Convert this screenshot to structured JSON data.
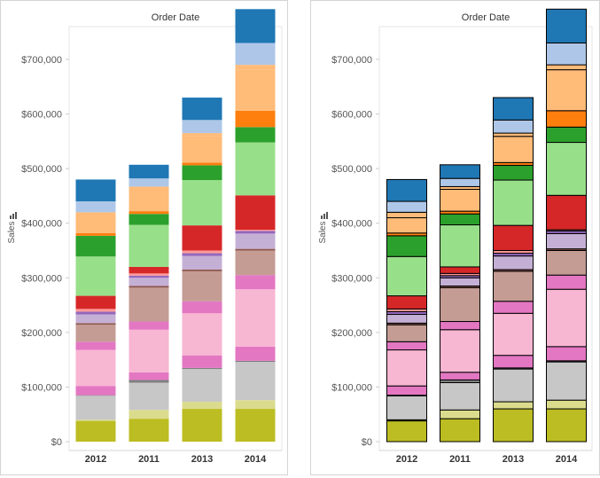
{
  "chart_data": [
    {
      "type": "bar",
      "stacked": true,
      "header": "Order Date",
      "ylabel": "Sales",
      "categories": [
        "2012",
        "2011",
        "2013",
        "2014"
      ],
      "ylim": [
        0,
        760000
      ],
      "yticks": [
        "$0",
        "$100,000",
        "$200,000",
        "$300,000",
        "$400,000",
        "$500,000",
        "$600,000",
        "$700,000"
      ],
      "segment_outline": false,
      "segments": [
        [
          38000,
          2000,
          44000,
          1000,
          17000,
          66000,
          15000,
          31000,
          3000,
          16000,
          5000,
          5000,
          24000,
          72000,
          38000,
          5000,
          28000,
          10000,
          20000,
          40000
        ],
        [
          42000,
          16000,
          50000,
          5000,
          14000,
          78000,
          15000,
          62000,
          3000,
          15000,
          4000,
          4000,
          12000,
          77000,
          20000,
          5000,
          40000,
          5000,
          15000,
          25000
        ],
        [
          60000,
          13000,
          60000,
          2000,
          23000,
          77000,
          22000,
          55000,
          3000,
          25000,
          5000,
          5000,
          46000,
          83000,
          27000,
          5000,
          48000,
          6000,
          24000,
          41000
        ],
        [
          60000,
          16000,
          70000,
          2000,
          26000,
          105000,
          26000,
          45000,
          3000,
          28000,
          5000,
          2000,
          63000,
          97000,
          28000,
          30000,
          75000,
          9000,
          40000,
          62000
        ]
      ]
    },
    {
      "type": "bar",
      "stacked": true,
      "header": "Order Date",
      "ylabel": "Sales",
      "categories": [
        "2012",
        "2011",
        "2013",
        "2014"
      ],
      "ylim": [
        0,
        760000
      ],
      "yticks": [
        "$0",
        "$100,000",
        "$200,000",
        "$300,000",
        "$400,000",
        "$500,000",
        "$600,000",
        "$700,000"
      ],
      "segment_outline": true,
      "segments": [
        [
          38000,
          2000,
          44000,
          1000,
          17000,
          66000,
          15000,
          31000,
          3000,
          16000,
          5000,
          5000,
          24000,
          72000,
          38000,
          5000,
          28000,
          10000,
          20000,
          40000
        ],
        [
          42000,
          16000,
          50000,
          5000,
          14000,
          78000,
          15000,
          62000,
          3000,
          15000,
          4000,
          4000,
          12000,
          77000,
          20000,
          5000,
          40000,
          5000,
          15000,
          25000
        ],
        [
          60000,
          13000,
          60000,
          2000,
          23000,
          77000,
          22000,
          55000,
          3000,
          25000,
          5000,
          5000,
          46000,
          83000,
          27000,
          5000,
          48000,
          6000,
          24000,
          41000
        ],
        [
          60000,
          16000,
          70000,
          2000,
          26000,
          105000,
          26000,
          45000,
          3000,
          28000,
          5000,
          2000,
          63000,
          97000,
          28000,
          30000,
          75000,
          9000,
          40000,
          62000
        ]
      ]
    }
  ],
  "palette": [
    "#bcbd22",
    "#dbdb8d",
    "#c7c7c7",
    "#7f7f7f",
    "#e377c2",
    "#f7b6d2",
    "#e377c2",
    "#c49c94",
    "#8c564b",
    "#c5b0d5",
    "#9467bd",
    "#ff9896",
    "#d62728",
    "#98df8a",
    "#2ca02c",
    "#ff7f0e",
    "#ffbb78",
    "#ffbb78",
    "#aec7e8",
    "#1f77b4"
  ],
  "ylabel_icon": "bar-chart-icon"
}
